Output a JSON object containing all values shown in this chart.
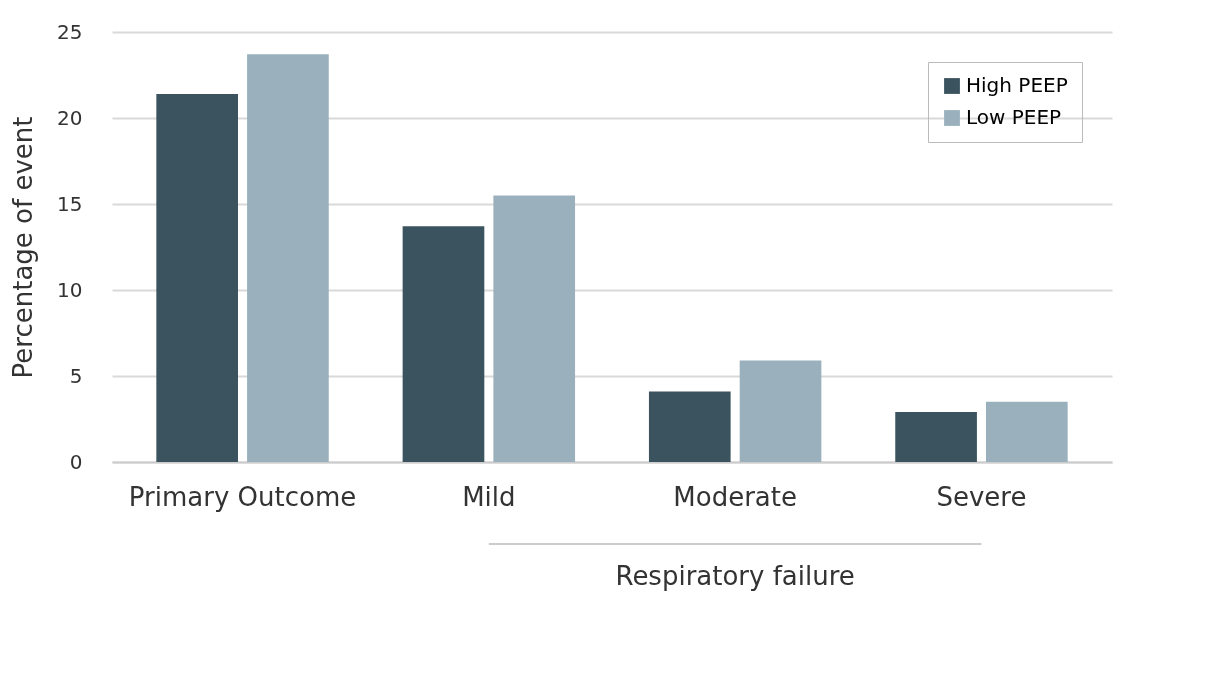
{
  "chart_data": {
    "type": "bar",
    "ylabel": "Percentage of event",
    "categories": [
      "Primary Outcome",
      "Mild",
      "Moderate",
      "Severe"
    ],
    "series": [
      {
        "name": "High PEEP",
        "color": "#3b535e",
        "values": [
          21.4,
          13.7,
          4.1,
          2.9
        ]
      },
      {
        "name": "Low PEEP",
        "color": "#9bb0bd",
        "values": [
          23.7,
          15.5,
          5.9,
          3.5
        ]
      }
    ],
    "ylim": [
      0,
      25
    ],
    "yticks": [
      0,
      5,
      10,
      15,
      20,
      25
    ],
    "grid": "y",
    "legend": "top right",
    "annotations": [
      "Respiratory failure"
    ]
  }
}
